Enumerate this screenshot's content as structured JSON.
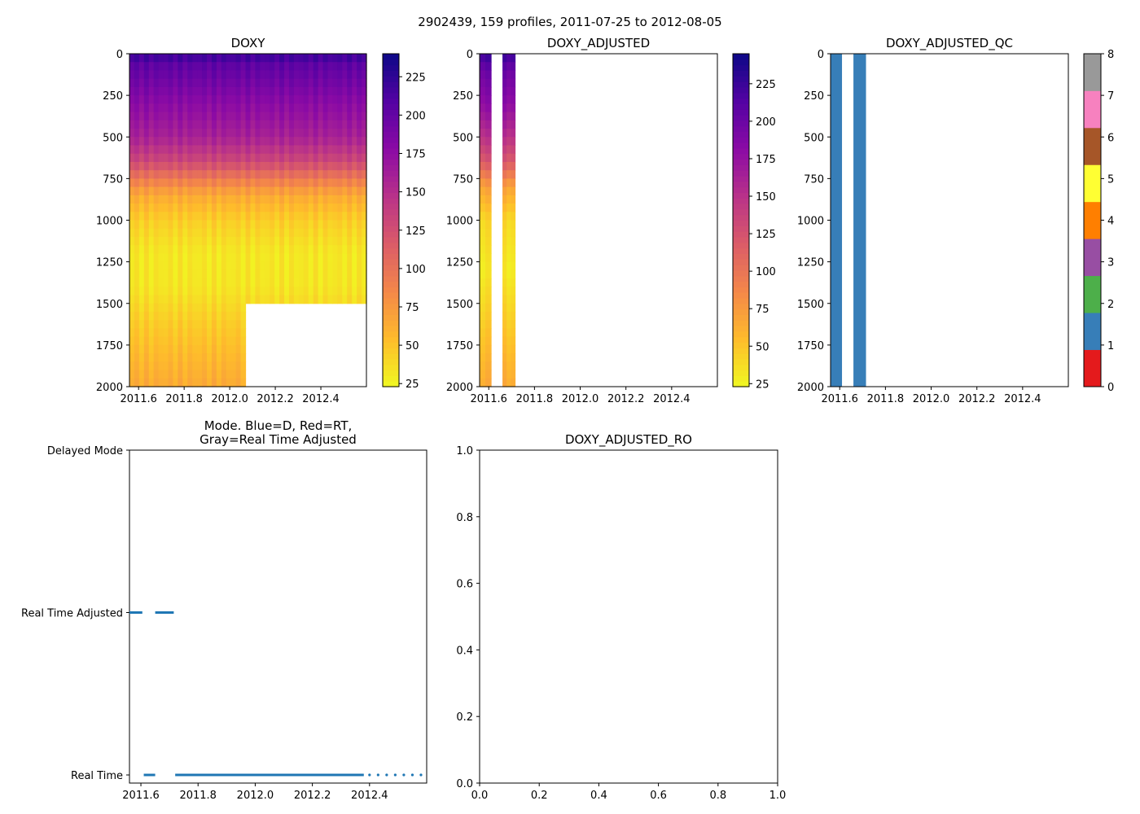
{
  "suptitle": "2902439, 159 profiles, 2011-07-25 to 2012-08-05",
  "chart_data": [
    {
      "id": "doxy",
      "type": "heatmap",
      "title": "DOXY",
      "xlim": [
        2011.56,
        2012.6
      ],
      "ylim": [
        2000,
        0
      ],
      "xticks": [
        2011.6,
        2011.8,
        2012.0,
        2012.2,
        2012.4
      ],
      "xtick_labels": [
        "2011.6",
        "2011.8",
        "2012.0",
        "2012.2",
        "2012.4"
      ],
      "yticks": [
        0,
        250,
        500,
        750,
        1000,
        1250,
        1500,
        1750,
        2000
      ],
      "ytick_labels": [
        "0",
        "250",
        "500",
        "750",
        "1000",
        "1250",
        "1500",
        "1750",
        "2000"
      ],
      "colormap": "plasma_r",
      "color_range": [
        23,
        240
      ],
      "colorbar_ticks": [
        25,
        50,
        75,
        100,
        125,
        150,
        175,
        200,
        225
      ],
      "colorbar_tick_labels": [
        "25",
        "50",
        "75",
        "100",
        "125",
        "150",
        "175",
        "200",
        "225"
      ],
      "depth_profile": [
        [
          0,
          225
        ],
        [
          50,
          205
        ],
        [
          150,
          195
        ],
        [
          300,
          178
        ],
        [
          500,
          160
        ],
        [
          650,
          130
        ],
        [
          750,
          95
        ],
        [
          850,
          65
        ],
        [
          1000,
          45
        ],
        [
          1200,
          32
        ],
        [
          1400,
          33
        ],
        [
          1600,
          45
        ],
        [
          1800,
          55
        ],
        [
          2000,
          65
        ]
      ],
      "data_gap": {
        "x_start": 2012.05,
        "x_end": 2012.6,
        "depth_start": 1500,
        "depth_end": 2000
      }
    },
    {
      "id": "doxy_adjusted",
      "type": "heatmap",
      "title": "DOXY_ADJUSTED",
      "xlim": [
        2011.56,
        2012.6
      ],
      "ylim": [
        2000,
        0
      ],
      "xticks": [
        2011.6,
        2011.8,
        2012.0,
        2012.2,
        2012.4
      ],
      "xtick_labels": [
        "2011.6",
        "2011.8",
        "2012.0",
        "2012.2",
        "2012.4"
      ],
      "yticks": [
        0,
        250,
        500,
        750,
        1000,
        1250,
        1500,
        1750,
        2000
      ],
      "ytick_labels": [
        "0",
        "250",
        "500",
        "750",
        "1000",
        "1250",
        "1500",
        "1750",
        "2000"
      ],
      "colormap": "plasma_r",
      "color_range": [
        23,
        245
      ],
      "colorbar_ticks": [
        25,
        50,
        75,
        100,
        125,
        150,
        175,
        200,
        225
      ],
      "colorbar_tick_labels": [
        "25",
        "50",
        "75",
        "100",
        "125",
        "150",
        "175",
        "200",
        "225"
      ],
      "depth_profile": [
        [
          0,
          225
        ],
        [
          100,
          200
        ],
        [
          300,
          180
        ],
        [
          500,
          150
        ],
        [
          650,
          120
        ],
        [
          800,
          70
        ],
        [
          1000,
          40
        ],
        [
          1300,
          30
        ],
        [
          1600,
          45
        ],
        [
          2000,
          65
        ]
      ],
      "columns": [
        {
          "x_start": 2011.56,
          "x_end": 2011.61
        },
        {
          "x_start": 2011.66,
          "x_end": 2011.715
        }
      ]
    },
    {
      "id": "doxy_adjusted_qc",
      "type": "heatmap",
      "title": "DOXY_ADJUSTED_QC",
      "xlim": [
        2011.56,
        2012.6
      ],
      "ylim": [
        2000,
        0
      ],
      "xticks": [
        2011.6,
        2011.8,
        2012.0,
        2012.2,
        2012.4
      ],
      "xtick_labels": [
        "2011.6",
        "2011.8",
        "2012.0",
        "2012.2",
        "2012.4"
      ],
      "yticks": [
        0,
        250,
        500,
        750,
        1000,
        1250,
        1500,
        1750,
        2000
      ],
      "ytick_labels": [
        "0",
        "250",
        "500",
        "750",
        "1000",
        "1250",
        "1500",
        "1750",
        "2000"
      ],
      "qc_value": 1,
      "columns": [
        {
          "x_start": 2011.56,
          "x_end": 2011.61
        },
        {
          "x_start": 2011.66,
          "x_end": 2011.715
        }
      ],
      "colorbar_ticks": [
        0,
        1,
        2,
        3,
        4,
        5,
        6,
        7,
        8
      ],
      "colorbar_tick_labels": [
        "0",
        "1",
        "2",
        "3",
        "4",
        "5",
        "6",
        "7",
        "8"
      ],
      "qc_colors": [
        "#e41a1c",
        "#377eb8",
        "#4daf4a",
        "#984ea3",
        "#ff7f00",
        "#ffff33",
        "#a65628",
        "#f781bf",
        "#999999"
      ]
    },
    {
      "id": "mode",
      "type": "line",
      "title": "Mode. Blue=D, Red=RT,\nGray=Real Time Adjusted",
      "xlim": [
        2011.56,
        2012.6
      ],
      "ylim": [
        -0.05,
        2
      ],
      "xticks": [
        2011.6,
        2011.8,
        2012.0,
        2012.2,
        2012.4
      ],
      "xtick_labels": [
        "2011.6",
        "2011.8",
        "2012.0",
        "2012.2",
        "2012.4"
      ],
      "yticks": [
        0,
        1,
        2
      ],
      "ytick_labels": [
        "Real Time",
        "Real Time Adjusted",
        "Delayed Mode"
      ],
      "line_color": "#1f77b4",
      "segments": [
        {
          "y": 1,
          "x_start": 2011.56,
          "x_end": 2011.605
        },
        {
          "y": 1,
          "x_start": 2011.65,
          "x_end": 2011.715
        },
        {
          "y": 0,
          "x_start": 2011.61,
          "x_end": 2011.65
        },
        {
          "y": 0,
          "x_start": 2011.72,
          "x_end": 2012.38
        }
      ],
      "points": [
        {
          "x": 2012.4,
          "y": 0
        },
        {
          "x": 2012.43,
          "y": 0
        },
        {
          "x": 2012.46,
          "y": 0
        },
        {
          "x": 2012.49,
          "y": 0
        },
        {
          "x": 2012.52,
          "y": 0
        },
        {
          "x": 2012.55,
          "y": 0
        },
        {
          "x": 2012.58,
          "y": 0
        }
      ]
    },
    {
      "id": "doxy_adjusted_ro",
      "type": "scatter",
      "title": "DOXY_ADJUSTED_RO",
      "xlim": [
        0,
        1
      ],
      "ylim": [
        0,
        1
      ],
      "xticks": [
        0,
        0.2,
        0.4,
        0.6,
        0.8,
        1.0
      ],
      "xtick_labels": [
        "0.0",
        "0.2",
        "0.4",
        "0.6",
        "0.8",
        "1.0"
      ],
      "yticks": [
        0,
        0.2,
        0.4,
        0.6,
        0.8,
        1.0
      ],
      "ytick_labels": [
        "0.0",
        "0.2",
        "0.4",
        "0.6",
        "0.8",
        "1.0"
      ],
      "points": []
    }
  ]
}
